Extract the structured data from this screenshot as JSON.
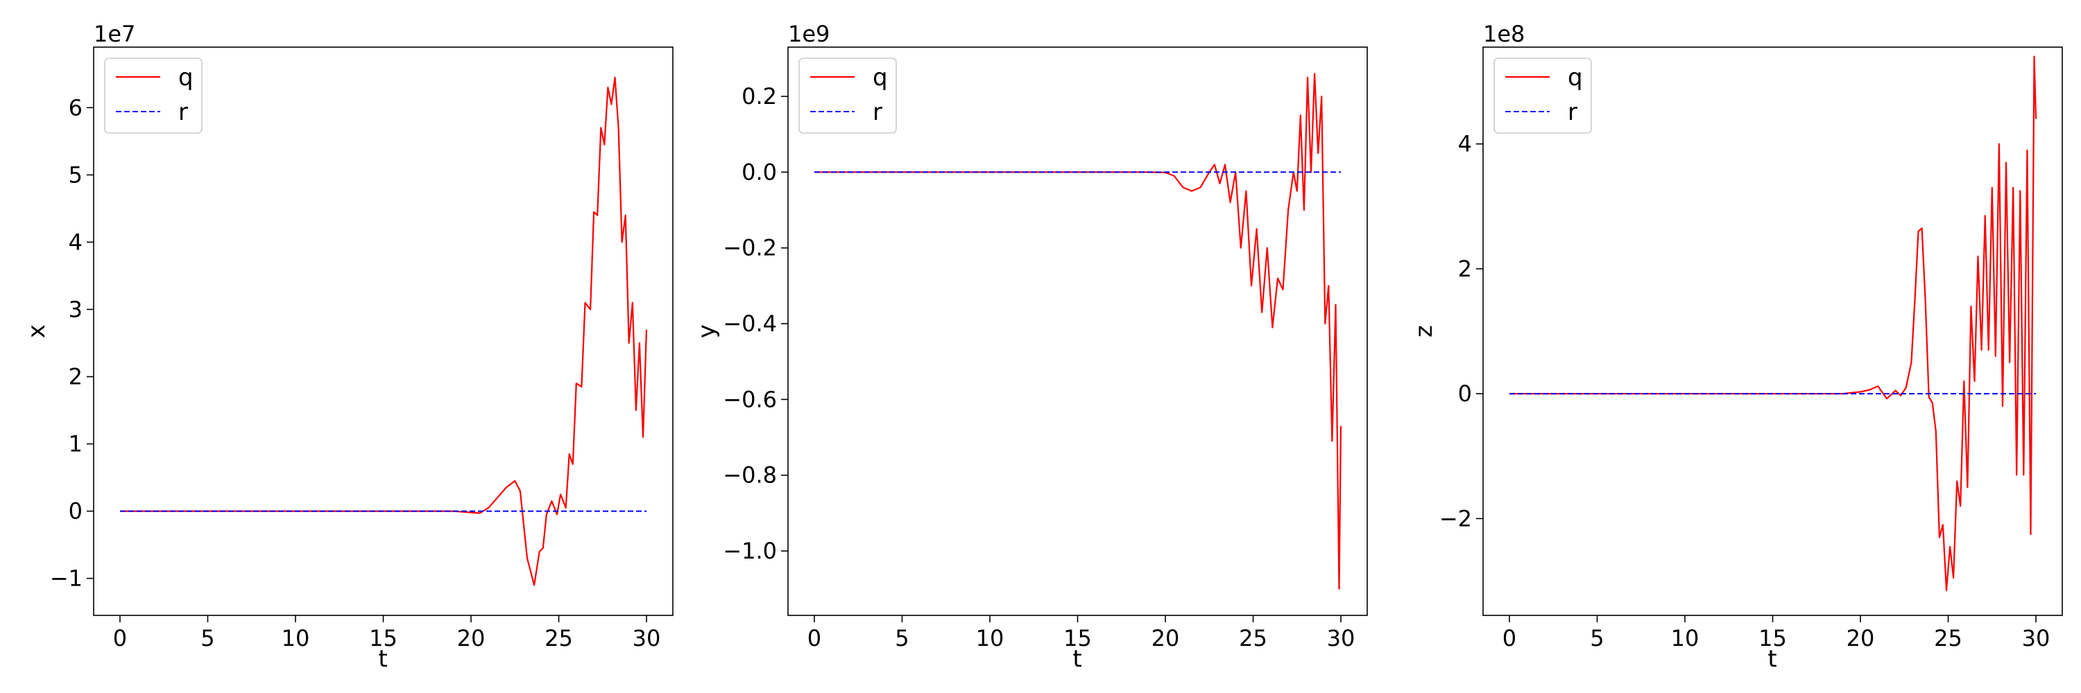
{
  "colors": {
    "q": "#ff0000",
    "r": "#0000ff",
    "axes": "#000000",
    "legend_border": "#cccccc"
  },
  "chart_data": [
    {
      "type": "line",
      "xlabel": "t",
      "ylabel": "x",
      "offset_text": "1e7",
      "xlim": [
        -1.5,
        31.5
      ],
      "ylim": [
        -1.55,
        6.9
      ],
      "xticks": [
        0,
        5,
        10,
        15,
        20,
        25,
        30
      ],
      "xtick_labels": [
        "0",
        "5",
        "10",
        "15",
        "20",
        "25",
        "30"
      ],
      "yticks": [
        -1,
        0,
        1,
        2,
        3,
        4,
        5,
        6
      ],
      "ytick_labels": [
        "−1",
        "0",
        "1",
        "2",
        "3",
        "4",
        "5",
        "6"
      ],
      "legend": {
        "position": "top-left",
        "entries": [
          "q",
          "r"
        ]
      },
      "series": [
        {
          "name": "q",
          "style": "solid",
          "x": [
            0,
            5,
            10,
            15,
            19,
            20,
            20.5,
            21,
            21.5,
            22,
            22.5,
            22.8,
            23.2,
            23.6,
            23.9,
            24.1,
            24.3,
            24.6,
            24.9,
            25.1,
            25.4,
            25.6,
            25.8,
            26.0,
            26.3,
            26.5,
            26.8,
            27.0,
            27.2,
            27.4,
            27.6,
            27.8,
            28.0,
            28.2,
            28.4,
            28.6,
            28.8,
            29.0,
            29.2,
            29.4,
            29.6,
            29.8,
            30.0
          ],
          "y": [
            0,
            0,
            0,
            0,
            0,
            -0.02,
            -0.03,
            0.05,
            0.2,
            0.35,
            0.45,
            0.3,
            -0.7,
            -1.1,
            -0.6,
            -0.55,
            -0.05,
            0.15,
            -0.05,
            0.25,
            0.05,
            0.85,
            0.7,
            1.9,
            1.85,
            3.1,
            3.0,
            4.45,
            4.4,
            5.7,
            5.45,
            6.3,
            6.05,
            6.45,
            5.7,
            4.0,
            4.4,
            2.5,
            3.1,
            1.5,
            2.5,
            1.1,
            2.7
          ]
        },
        {
          "name": "r",
          "style": "dashed",
          "x": [
            0,
            30
          ],
          "y": [
            0,
            0
          ]
        }
      ]
    },
    {
      "type": "line",
      "xlabel": "t",
      "ylabel": "y",
      "offset_text": "1e9",
      "xlim": [
        -1.5,
        31.5
      ],
      "ylim": [
        -1.17,
        0.33
      ],
      "xticks": [
        0,
        5,
        10,
        15,
        20,
        25,
        30
      ],
      "xtick_labels": [
        "0",
        "5",
        "10",
        "15",
        "20",
        "25",
        "30"
      ],
      "yticks": [
        0.2,
        0.0,
        -0.2,
        -0.4,
        -0.6,
        -0.8,
        -1.0
      ],
      "ytick_labels": [
        "0.2",
        "0.0",
        "−0.2",
        "−0.4",
        "−0.6",
        "−0.8",
        "−1.0"
      ],
      "legend": {
        "position": "top-left",
        "entries": [
          "q",
          "r"
        ]
      },
      "series": [
        {
          "name": "q",
          "style": "solid",
          "x": [
            0,
            5,
            10,
            15,
            19,
            20,
            20.5,
            21,
            21.5,
            22,
            22.5,
            22.8,
            23.1,
            23.4,
            23.7,
            24.0,
            24.3,
            24.6,
            24.9,
            25.2,
            25.5,
            25.8,
            26.1,
            26.4,
            26.7,
            27.0,
            27.3,
            27.5,
            27.7,
            27.9,
            28.1,
            28.3,
            28.5,
            28.7,
            28.9,
            29.1,
            29.3,
            29.5,
            29.7,
            29.9,
            30.0
          ],
          "y": [
            0,
            0,
            0,
            0,
            0,
            -0.001,
            -0.01,
            -0.04,
            -0.05,
            -0.04,
            0.0,
            0.02,
            -0.03,
            0.02,
            -0.08,
            0.0,
            -0.2,
            -0.05,
            -0.3,
            -0.15,
            -0.37,
            -0.2,
            -0.41,
            -0.28,
            -0.31,
            -0.1,
            0.0,
            -0.05,
            0.15,
            -0.1,
            0.25,
            0.0,
            0.26,
            0.05,
            0.2,
            -0.4,
            -0.3,
            -0.71,
            -0.35,
            -1.1,
            -0.67
          ]
        },
        {
          "name": "r",
          "style": "dashed",
          "x": [
            0,
            30
          ],
          "y": [
            0,
            0
          ]
        }
      ]
    },
    {
      "type": "line",
      "xlabel": "t",
      "ylabel": "z",
      "offset_text": "1e8",
      "xlim": [
        -1.5,
        31.5
      ],
      "ylim": [
        -3.55,
        5.55
      ],
      "xticks": [
        0,
        5,
        10,
        15,
        20,
        25,
        30
      ],
      "xtick_labels": [
        "0",
        "5",
        "10",
        "15",
        "20",
        "25",
        "30"
      ],
      "yticks": [
        -2,
        0,
        2,
        4
      ],
      "ytick_labels": [
        "−2",
        "0",
        "2",
        "4"
      ],
      "legend": {
        "position": "top-left",
        "entries": [
          "q",
          "r"
        ]
      },
      "series": [
        {
          "name": "q",
          "style": "solid",
          "x": [
            0,
            5,
            10,
            15,
            19,
            20,
            20.5,
            21,
            21.5,
            22,
            22.3,
            22.6,
            22.9,
            23.1,
            23.3,
            23.5,
            23.7,
            23.9,
            24.1,
            24.3,
            24.5,
            24.7,
            24.9,
            25.1,
            25.3,
            25.5,
            25.7,
            25.9,
            26.1,
            26.3,
            26.5,
            26.7,
            26.9,
            27.1,
            27.3,
            27.5,
            27.7,
            27.9,
            28.1,
            28.3,
            28.5,
            28.7,
            28.9,
            29.1,
            29.3,
            29.5,
            29.7,
            29.9,
            30.0
          ],
          "y": [
            0,
            0,
            0,
            0,
            0,
            0.03,
            0.06,
            0.12,
            -0.08,
            0.05,
            -0.03,
            0.1,
            0.5,
            1.5,
            2.6,
            2.65,
            1.5,
            -0.05,
            -0.15,
            -0.6,
            -2.3,
            -2.1,
            -3.15,
            -2.45,
            -2.95,
            -1.4,
            -1.8,
            0.2,
            -1.5,
            1.4,
            0.2,
            2.2,
            0.7,
            2.85,
            0.7,
            3.3,
            0.6,
            4.0,
            -0.2,
            3.7,
            0.5,
            3.3,
            -1.3,
            3.25,
            -1.3,
            3.9,
            -2.25,
            5.4,
            4.4
          ]
        },
        {
          "name": "r",
          "style": "dashed",
          "x": [
            0,
            30
          ],
          "y": [
            0,
            0
          ]
        }
      ]
    }
  ]
}
